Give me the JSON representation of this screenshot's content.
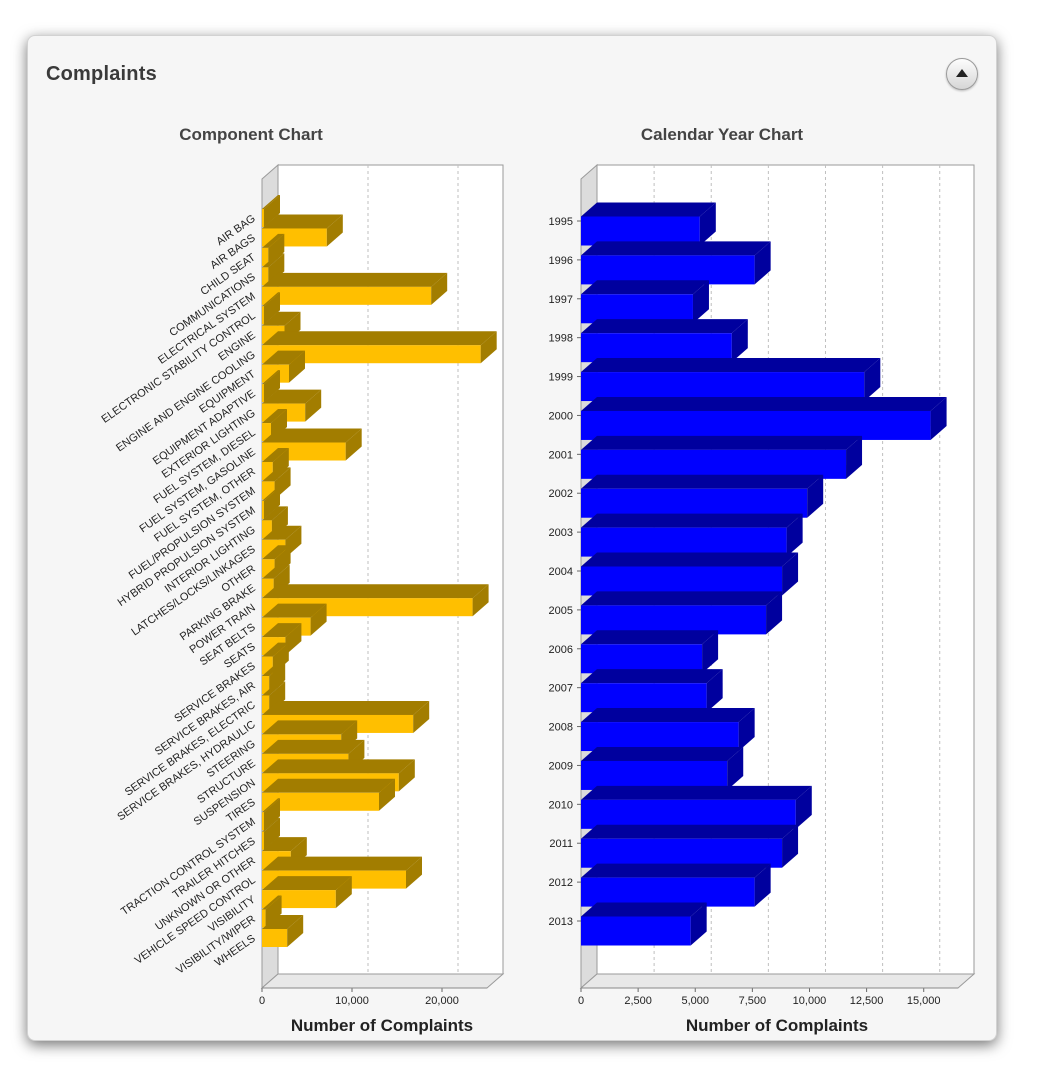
{
  "panel": {
    "title": "Complaints"
  },
  "chart_data": [
    {
      "type": "bar",
      "orientation": "horizontal",
      "style": "3d",
      "title": "Component Chart",
      "xlabel": "Number of Complaints",
      "ylabel": "",
      "xlim": [
        0,
        25000
      ],
      "xticks": [
        0,
        10000,
        20000
      ],
      "xtick_labels": [
        "0",
        "10,000",
        "20,000"
      ],
      "grid": "vertical dashed",
      "bar_color": "#FFBF00",
      "bar_side_color": "#A27D00",
      "categories": [
        "AIR BAG",
        "AIR BAGS",
        "CHILD SEAT",
        "COMMUNICATIONS",
        "ELECTRICAL SYSTEM",
        "ELECTRONIC STABILITY CONTROL",
        "ENGINE",
        "ENGINE AND ENGINE COOLING",
        "EQUIPMENT",
        "EQUIPMENT ADAPTIVE",
        "EXTERIOR LIGHTING",
        "FUEL SYSTEM, DIESEL",
        "FUEL SYSTEM, GASOLINE",
        "FUEL SYSTEM, OTHER",
        "FUEL/PROPULSION SYSTEM",
        "HYBRID PROPULSION SYSTEM",
        "INTERIOR LIGHTING",
        "LATCHES/LOCKS/LINKAGES",
        "OTHER",
        "PARKING BRAKE",
        "POWER TRAIN",
        "SEAT BELTS",
        "SEATS",
        "SERVICE BRAKES",
        "SERVICE BRAKES, AIR",
        "SERVICE BRAKES, ELECTRIC",
        "SERVICE BRAKES, HYDRAULIC",
        "STEERING",
        "STRUCTURE",
        "SUSPENSION",
        "TIRES",
        "TRACTION CONTROL SYSTEM",
        "TRAILER HITCHES",
        "UNKNOWN OR OTHER",
        "VEHICLE SPEED CONTROL",
        "VISIBILITY",
        "VISIBILITY/WIPER",
        "WHEELS"
      ],
      "values": [
        50,
        7200,
        700,
        700,
        18800,
        150,
        2500,
        24300,
        3000,
        150,
        4800,
        1000,
        9300,
        1200,
        1400,
        100,
        1100,
        2600,
        1400,
        1300,
        23400,
        5400,
        2600,
        1200,
        800,
        800,
        16800,
        8800,
        9600,
        15200,
        13000,
        200,
        50,
        3200,
        16000,
        8200,
        400,
        2800
      ]
    },
    {
      "type": "bar",
      "orientation": "horizontal",
      "style": "3d",
      "title": "Calendar Year Chart",
      "xlabel": "Number of Complaints",
      "ylabel": "",
      "xlim": [
        0,
        16500
      ],
      "xticks": [
        0,
        2500,
        5000,
        7500,
        10000,
        12500,
        15000
      ],
      "xtick_labels": [
        "0",
        "2,500",
        "5,000",
        "7,500",
        "10,000",
        "12,500",
        "15,000"
      ],
      "grid": "vertical dashed",
      "bar_color": "#0000FF",
      "bar_side_color": "#00009E",
      "categories": [
        "1995",
        "1996",
        "1997",
        "1998",
        "1999",
        "2000",
        "2001",
        "2002",
        "2003",
        "2004",
        "2005",
        "2006",
        "2007",
        "2008",
        "2009",
        "2010",
        "2011",
        "2012",
        "2013"
      ],
      "values": [
        5200,
        7600,
        4900,
        6600,
        12400,
        15300,
        11600,
        9900,
        9000,
        8800,
        8100,
        5300,
        5500,
        6900,
        6400,
        9400,
        8800,
        7600,
        4800
      ]
    }
  ]
}
